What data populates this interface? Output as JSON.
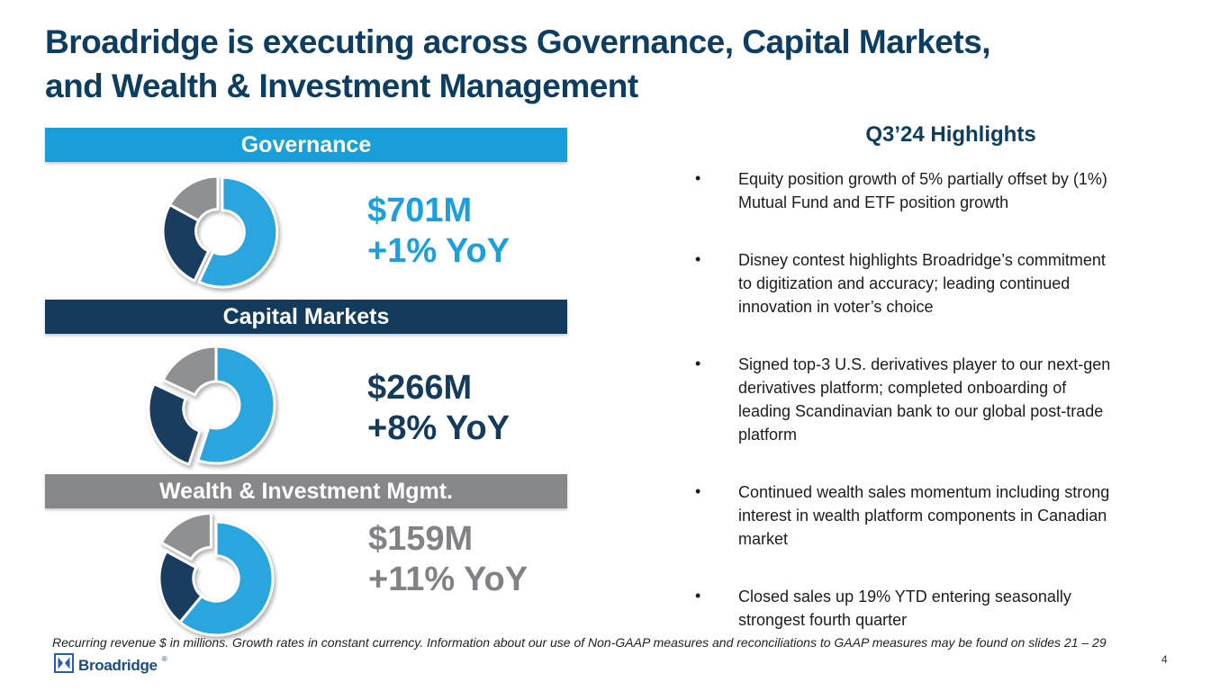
{
  "title": {
    "line1": "Broadridge is executing across Governance, Capital Markets,",
    "line2": "and Wealth & Investment Management"
  },
  "colors": {
    "title_navy": "#0E3D62",
    "accent_blue": "#189ED9",
    "navy": "#143A5C",
    "gray": "#85878A"
  },
  "chart_data": [
    {
      "type": "pie",
      "donut": true,
      "title": "Governance",
      "revenue": "$701M",
      "growth": "+1% YoY",
      "band_color": "#189ED9",
      "value_color": "#1BA0DC",
      "slices_pct": [
        57,
        26,
        17
      ],
      "slice_colors": [
        "#2BA5DD",
        "#1A3C5E",
        "#8E9194"
      ],
      "exploded_slice": 0,
      "legend": "off"
    },
    {
      "type": "pie",
      "donut": true,
      "title": "Capital Markets",
      "revenue": "$266M",
      "growth": "+8% YoY",
      "band_color": "#143A5C",
      "value_color": "#143A5C",
      "slices_pct": [
        55,
        27,
        18
      ],
      "slice_colors": [
        "#2BA5DD",
        "#1A3C5E",
        "#8E9194"
      ],
      "exploded_slice": 1,
      "legend": "off"
    },
    {
      "type": "pie",
      "donut": true,
      "title": "Wealth & Investment Mgmt.",
      "revenue": "$159M",
      "growth": "+11% YoY",
      "band_color": "#85878A",
      "value_color": "#808285",
      "slices_pct": [
        61,
        22,
        17
      ],
      "slice_colors": [
        "#2BA5DD",
        "#1A3C5E",
        "#8E9194"
      ],
      "exploded_slice": 2,
      "legend": "off"
    }
  ],
  "highlights": {
    "title": "Q3’24 Highlights",
    "bullet_char": "•",
    "bullets": [
      "Equity position growth of 5% partially offset by (1%)\nMutual Fund and ETF position growth",
      "Disney contest highlights Broadridge’s commitment\nto digitization and accuracy; leading continued\ninnovation in voter’s choice",
      "Signed top-3 U.S. derivatives player to our next-gen\nderivatives platform; completed onboarding of\nleading Scandinavian bank to our global post-trade\nplatform",
      "Continued wealth sales momentum including strong\ninterest in wealth platform components in Canadian\nmarket",
      "Closed sales up 19% YTD entering seasonally\nstrongest fourth quarter"
    ]
  },
  "footnote": "Recurring revenue $ in millions. Growth rates in constant currency. Information about our use of Non-GAAP measures and reconciliations to GAAP measures may be found on slides 21 – 29",
  "logo": {
    "text": "Broadridge",
    "mark": "®"
  },
  "page_number": "4"
}
